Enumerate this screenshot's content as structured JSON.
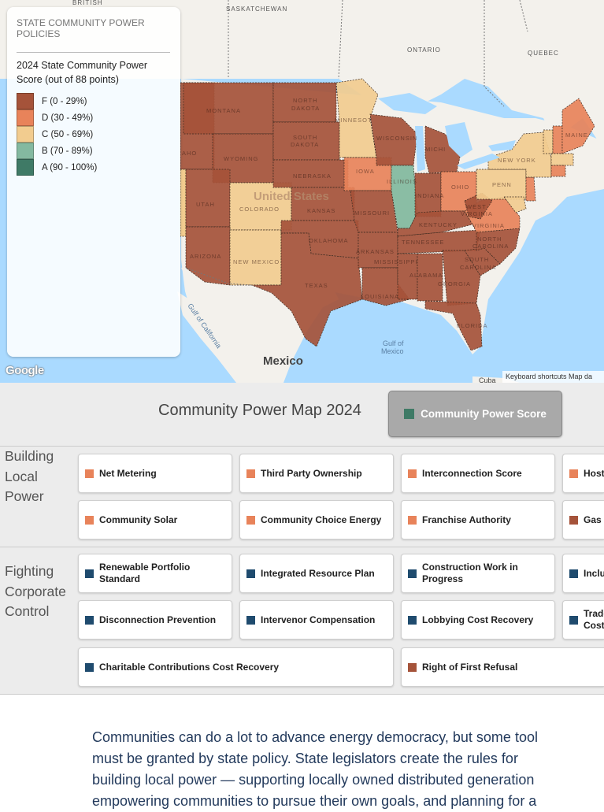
{
  "map": {
    "labels": {
      "british": "BRITISH",
      "saskatchewan": "SASKATCHEWAN",
      "ontario": "ONTARIO",
      "quebec": "QUEBEC",
      "united_states": "United States",
      "mexico": "Mexico",
      "gulf_mexico_1": "Gulf of",
      "gulf_mexico_2": "Mexico",
      "gulf_california": "Gulf of California",
      "cuba": "Cuba"
    },
    "state_labels": {
      "montana": "MONTANA",
      "north_dakota_1": "NORTH",
      "north_dakota_2": "DAKOTA",
      "south_dakota_1": "SOUTH",
      "south_dakota_2": "DAKOTA",
      "wyoming": "WYOMING",
      "nebraska": "NEBRASKA",
      "idaho": "AHO",
      "utah": "UTAH",
      "colorado": "COLORADO",
      "kansas": "KANSAS",
      "arizona": "ARIZONA",
      "new_mexico": "NEW MEXICO",
      "oklahoma": "OKLAHOMA",
      "texas": "TEXAS",
      "minnesota": "MINNESOT",
      "iowa": "IOWA",
      "missouri": "MISSOURI",
      "arkansas": "ARKANSAS",
      "louisiana": "LOUISIANA",
      "wisconsin": "WISCONSIN",
      "illinois": "ILLINOIS",
      "michigan": "MICHI",
      "indiana": "INDIANA",
      "ohio": "OHIO",
      "kentucky": "KENTUCKY",
      "tennessee": "TENNESSEE",
      "mississippi": "MISSISSIPPI",
      "alabama": "ALABAMA",
      "georgia": "GEORGIA",
      "florida": "FLORIDA",
      "south_carolina_1": "SOUTH",
      "south_carolina_2": "CAROLINA",
      "north_carolina_1": "NORTH",
      "north_carolina_2": "CAROLINA",
      "virginia": "VIRGINIA",
      "west_virginia_1": "WEST",
      "west_virginia_2": "VIRGINIA",
      "penn": "PENN",
      "new_york": "NEW YORK",
      "maine": "MAINE"
    },
    "google_logo": "Google",
    "keyboard_shortcuts": "Keyboard shortcuts   Map da"
  },
  "legend": {
    "title": "STATE COMMUNITY POWER POLICIES",
    "subtitle": "2024 State Community Power Score (out of 88 points)",
    "items": [
      {
        "label": "F (0 - 29%)",
        "color": "#a5533a"
      },
      {
        "label": "D (30 - 49%)",
        "color": "#e8835a"
      },
      {
        "label": "C (50 - 69%)",
        "color": "#f2cc8f"
      },
      {
        "label": "B (70 - 89%)",
        "color": "#84b9a0"
      },
      {
        "label": "A (90 - 100%)",
        "color": "#3f7a66"
      }
    ]
  },
  "panel": {
    "title": "Community Power Map 2024",
    "score_button": "Community Power Score",
    "sections": [
      {
        "label": "Building Local Power"
      },
      {
        "label": "Fighting Corporate Control"
      }
    ],
    "building": [
      "Net Metering",
      "Third Party Ownership",
      "Interconnection Score",
      "Host",
      "Community Solar",
      "Community Choice Energy",
      "Franchise Authority",
      "Gas"
    ],
    "fighting": [
      "Renewable Portfolio Standard",
      "Integrated Resource Plan",
      "Construction Work in Progress",
      "Inclu",
      "Disconnection Prevention",
      "Intervenor Compensation",
      "Lobbying Cost Recovery",
      "Trade Cost",
      "Charitable Contributions Cost Recovery",
      "Right of First Refusal"
    ]
  },
  "article": {
    "lines": [
      "Communities can do a lot to advance energy democracy, but some tool",
      "must be granted by state policy. State legislators create the rules for",
      "building local power — supporting locally owned distributed generation",
      "empowering communities to pursue their own goals, and planning for a"
    ]
  }
}
